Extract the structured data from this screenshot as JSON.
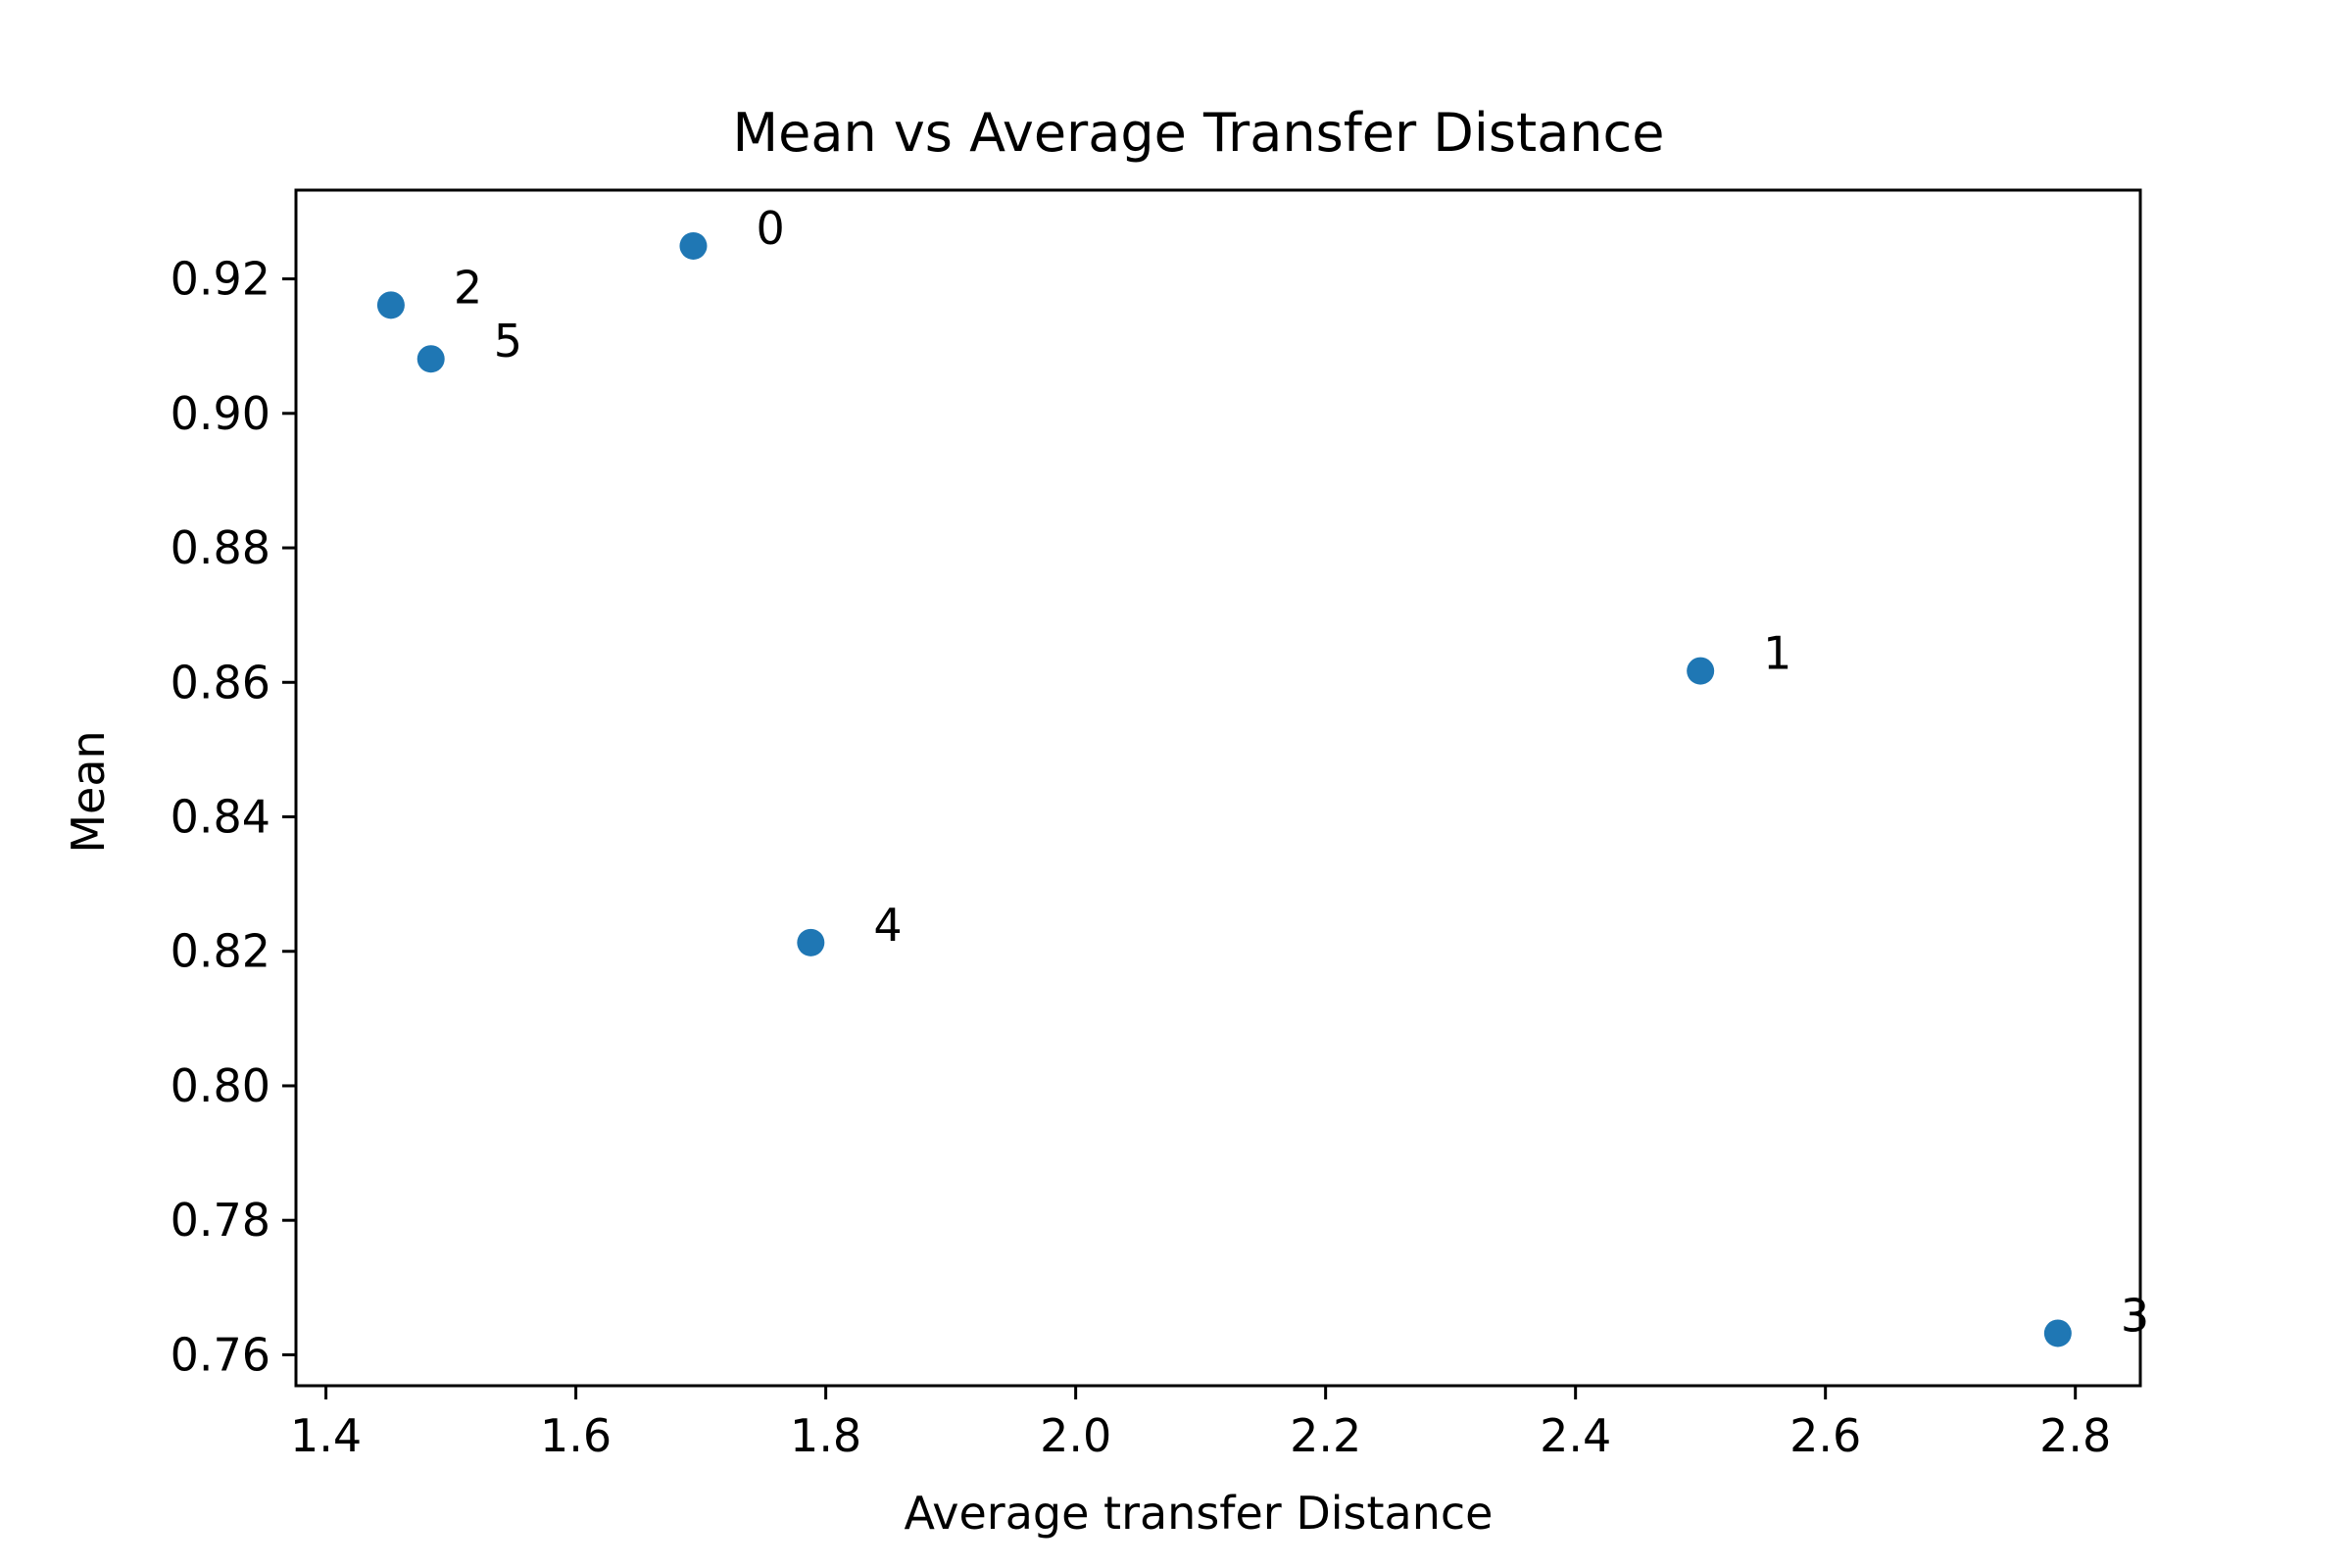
{
  "chart_data": {
    "type": "scatter",
    "title": "Mean vs Average Transfer Distance",
    "xlabel": "Average transfer Distance",
    "ylabel": "Mean",
    "xlim": [
      1.376,
      2.852
    ],
    "ylim": [
      0.7554,
      0.9332
    ],
    "xticks": [
      1.4,
      1.6,
      1.8,
      2.0,
      2.2,
      2.4,
      2.6,
      2.8
    ],
    "xtick_labels": [
      "1.4",
      "1.6",
      "1.8",
      "2.0",
      "2.2",
      "2.4",
      "2.6",
      "2.8"
    ],
    "yticks": [
      0.76,
      0.78,
      0.8,
      0.82,
      0.84,
      0.86,
      0.88,
      0.9,
      0.92
    ],
    "ytick_labels": [
      "0.76",
      "0.78",
      "0.80",
      "0.82",
      "0.84",
      "0.86",
      "0.88",
      "0.90",
      "0.92"
    ],
    "grid": false,
    "color": "#1f77b4",
    "points": [
      {
        "label": "0",
        "x": 1.694,
        "y": 0.9249
      },
      {
        "label": "1",
        "x": 2.5,
        "y": 0.8617
      },
      {
        "label": "2",
        "x": 1.452,
        "y": 0.9161
      },
      {
        "label": "3",
        "x": 2.786,
        "y": 0.7632
      },
      {
        "label": "4",
        "x": 1.788,
        "y": 0.8213
      },
      {
        "label": "5",
        "x": 1.484,
        "y": 0.9081
      }
    ]
  }
}
